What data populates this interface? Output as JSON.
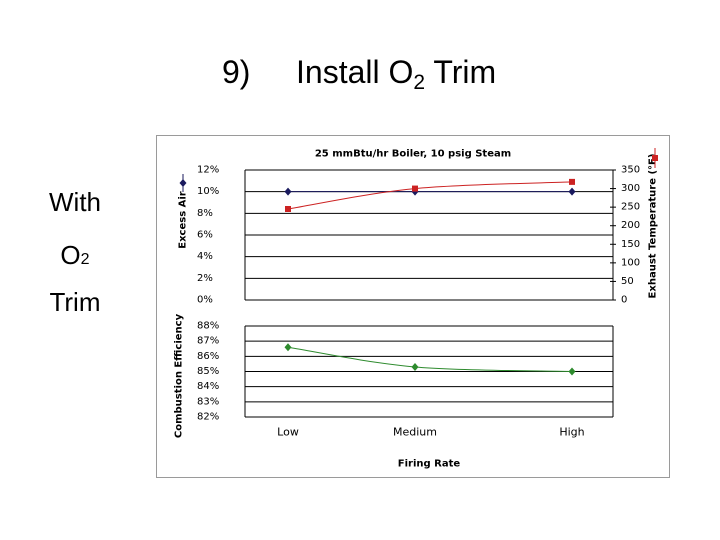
{
  "slide": {
    "number": "9)",
    "title_main": "Install O",
    "title_sub": "2",
    "title_end": " Trim",
    "side_line1": "With",
    "side_o": "O",
    "side_sub": "2",
    "side_line3": "Trim"
  },
  "chart_data": [
    {
      "type": "line",
      "title": "25 mmBtu/hr Boiler,  10 psig Steam",
      "categories": [
        "Low",
        "Medium",
        "High"
      ],
      "ylabel": "Excess Air",
      "y2label": "Exhaust Temperature (°F)",
      "ylim": [
        0,
        12
      ],
      "yticks": [
        "12%",
        "10%",
        "8%",
        "6%",
        "4%",
        "2%",
        "0%"
      ],
      "y2lim": [
        0,
        350
      ],
      "y2ticks": [
        "350",
        "300",
        "250",
        "200",
        "150",
        "100",
        "50",
        "0"
      ],
      "series": [
        {
          "name": "",
          "axis": "left",
          "values": [
            10,
            10,
            10
          ],
          "color": "#1a1a5e",
          "marker": "diamond"
        },
        {
          "name": "",
          "axis": "right",
          "values": [
            245,
            300,
            318
          ],
          "color": "#cc2222",
          "marker": "square"
        }
      ],
      "grid": true,
      "legend": "right"
    },
    {
      "type": "line",
      "categories": [
        "Low",
        "Medium",
        "High"
      ],
      "xlabel": "Firing Rate",
      "ylabel": "Combustion Efficiency",
      "ylim": [
        82,
        88
      ],
      "yticks": [
        "88%",
        "87%",
        "86%",
        "85%",
        "84%",
        "83%",
        "82%"
      ],
      "series": [
        {
          "name": "",
          "values": [
            86.6,
            85.3,
            85.0
          ],
          "color": "#2e8b2e",
          "marker": "diamond"
        }
      ],
      "grid": true
    }
  ]
}
